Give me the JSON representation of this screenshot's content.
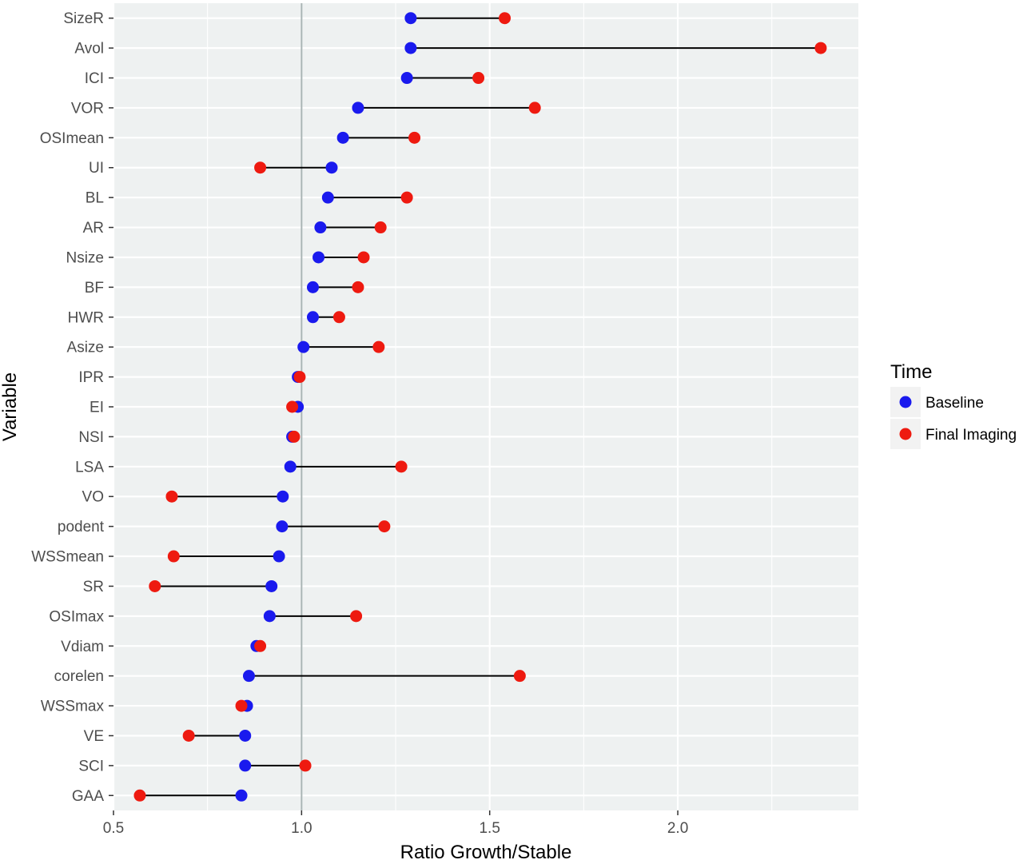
{
  "chart_data": {
    "type": "dumbbell",
    "xlabel": "Ratio Growth/Stable",
    "ylabel": "Variable",
    "xlim": [
      0.5,
      2.48
    ],
    "x_ticks": [
      0.5,
      1.0,
      1.5,
      2.0
    ],
    "x_tick_labels": [
      "0.5",
      "1.0",
      "1.5",
      "2.0"
    ],
    "reference_line": 1.0,
    "grid": true,
    "legend": {
      "title": "Time",
      "position": "right",
      "entries": [
        {
          "label": "Baseline",
          "color": "#1a1aee"
        },
        {
          "label": "Final Imaging",
          "color": "#ee1a10"
        }
      ]
    },
    "colors": {
      "panel_background": "#eef1f1",
      "grid": "#ffffff",
      "segment": "#000000",
      "reference_line": "#a9b4b4"
    },
    "categories": [
      "SizeR",
      "Avol",
      "ICI",
      "VOR",
      "OSImean",
      "UI",
      "BL",
      "AR",
      "Nsize",
      "BF",
      "HWR",
      "Asize",
      "IPR",
      "EI",
      "NSI",
      "LSA",
      "VO",
      "podent",
      "WSSmean",
      "SR",
      "OSImax",
      "Vdiam",
      "corelen",
      "WSSmax",
      "VE",
      "SCI",
      "GAA"
    ],
    "series": [
      {
        "name": "Baseline",
        "values": [
          1.29,
          1.29,
          1.28,
          1.15,
          1.11,
          1.08,
          1.07,
          1.05,
          1.045,
          1.03,
          1.03,
          1.005,
          0.99,
          0.99,
          0.975,
          0.97,
          0.95,
          0.948,
          0.94,
          0.92,
          0.915,
          0.88,
          0.86,
          0.855,
          0.85,
          0.85,
          0.84
        ]
      },
      {
        "name": "Final Imaging",
        "values": [
          1.54,
          2.38,
          1.47,
          1.62,
          1.3,
          0.89,
          1.28,
          1.21,
          1.165,
          1.15,
          1.1,
          1.205,
          0.995,
          0.975,
          0.98,
          1.265,
          0.655,
          1.22,
          0.66,
          0.61,
          1.145,
          0.89,
          1.58,
          0.84,
          0.7,
          1.01,
          0.57
        ]
      }
    ]
  }
}
